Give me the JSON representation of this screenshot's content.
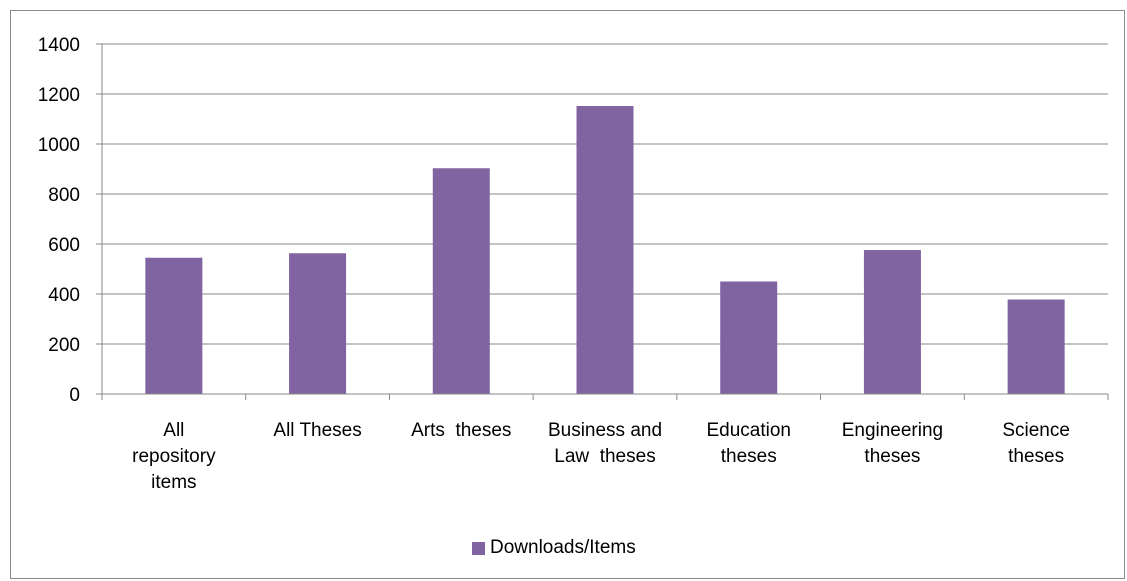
{
  "chart_data": {
    "type": "bar",
    "categories": [
      "All repository items",
      "All Theses",
      "Arts  theses",
      "Business and Law  theses",
      "Education theses",
      "Engineering theses",
      "Science theses"
    ],
    "category_lines": [
      [
        "All",
        "repository",
        "items"
      ],
      [
        "All Theses"
      ],
      [
        "Arts  theses"
      ],
      [
        "Business and",
        "Law  theses"
      ],
      [
        "Education",
        "theses"
      ],
      [
        "Engineering",
        "theses"
      ],
      [
        "Science",
        "theses"
      ]
    ],
    "series": [
      {
        "name": "Downloads/Items",
        "values": [
          545,
          563,
          903,
          1152,
          450,
          576,
          378
        ],
        "color": "#8064A2"
      }
    ],
    "ylim": [
      0,
      1400
    ],
    "yticks": [
      0,
      200,
      400,
      600,
      800,
      1000,
      1200,
      1400
    ],
    "grid": true,
    "legend_position": "bottom",
    "xlabel": "",
    "ylabel": "",
    "title": ""
  }
}
